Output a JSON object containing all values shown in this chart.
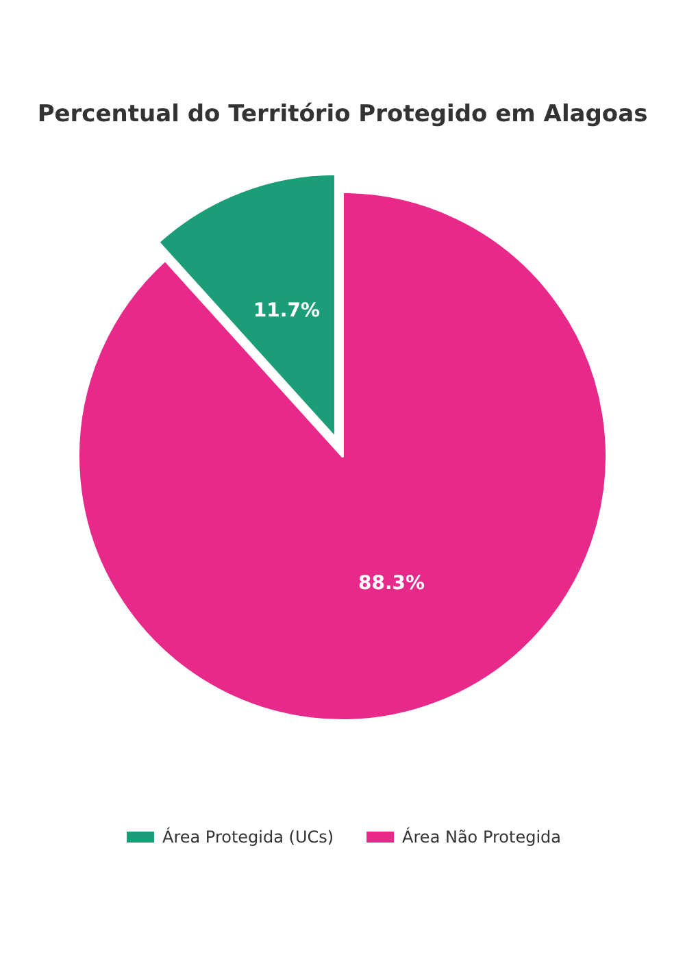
{
  "chart_data": {
    "type": "pie",
    "title": "Percentual do Território Protegido em Alagoas",
    "categories": [
      "Área Protegida (UCs)",
      "Área Não Protegida"
    ],
    "values": [
      11.7,
      88.3
    ],
    "colors": [
      "#1b9e77",
      "#e7298a"
    ],
    "legend": "bottom",
    "value_labels": [
      "11.7%",
      "88.3%"
    ]
  }
}
